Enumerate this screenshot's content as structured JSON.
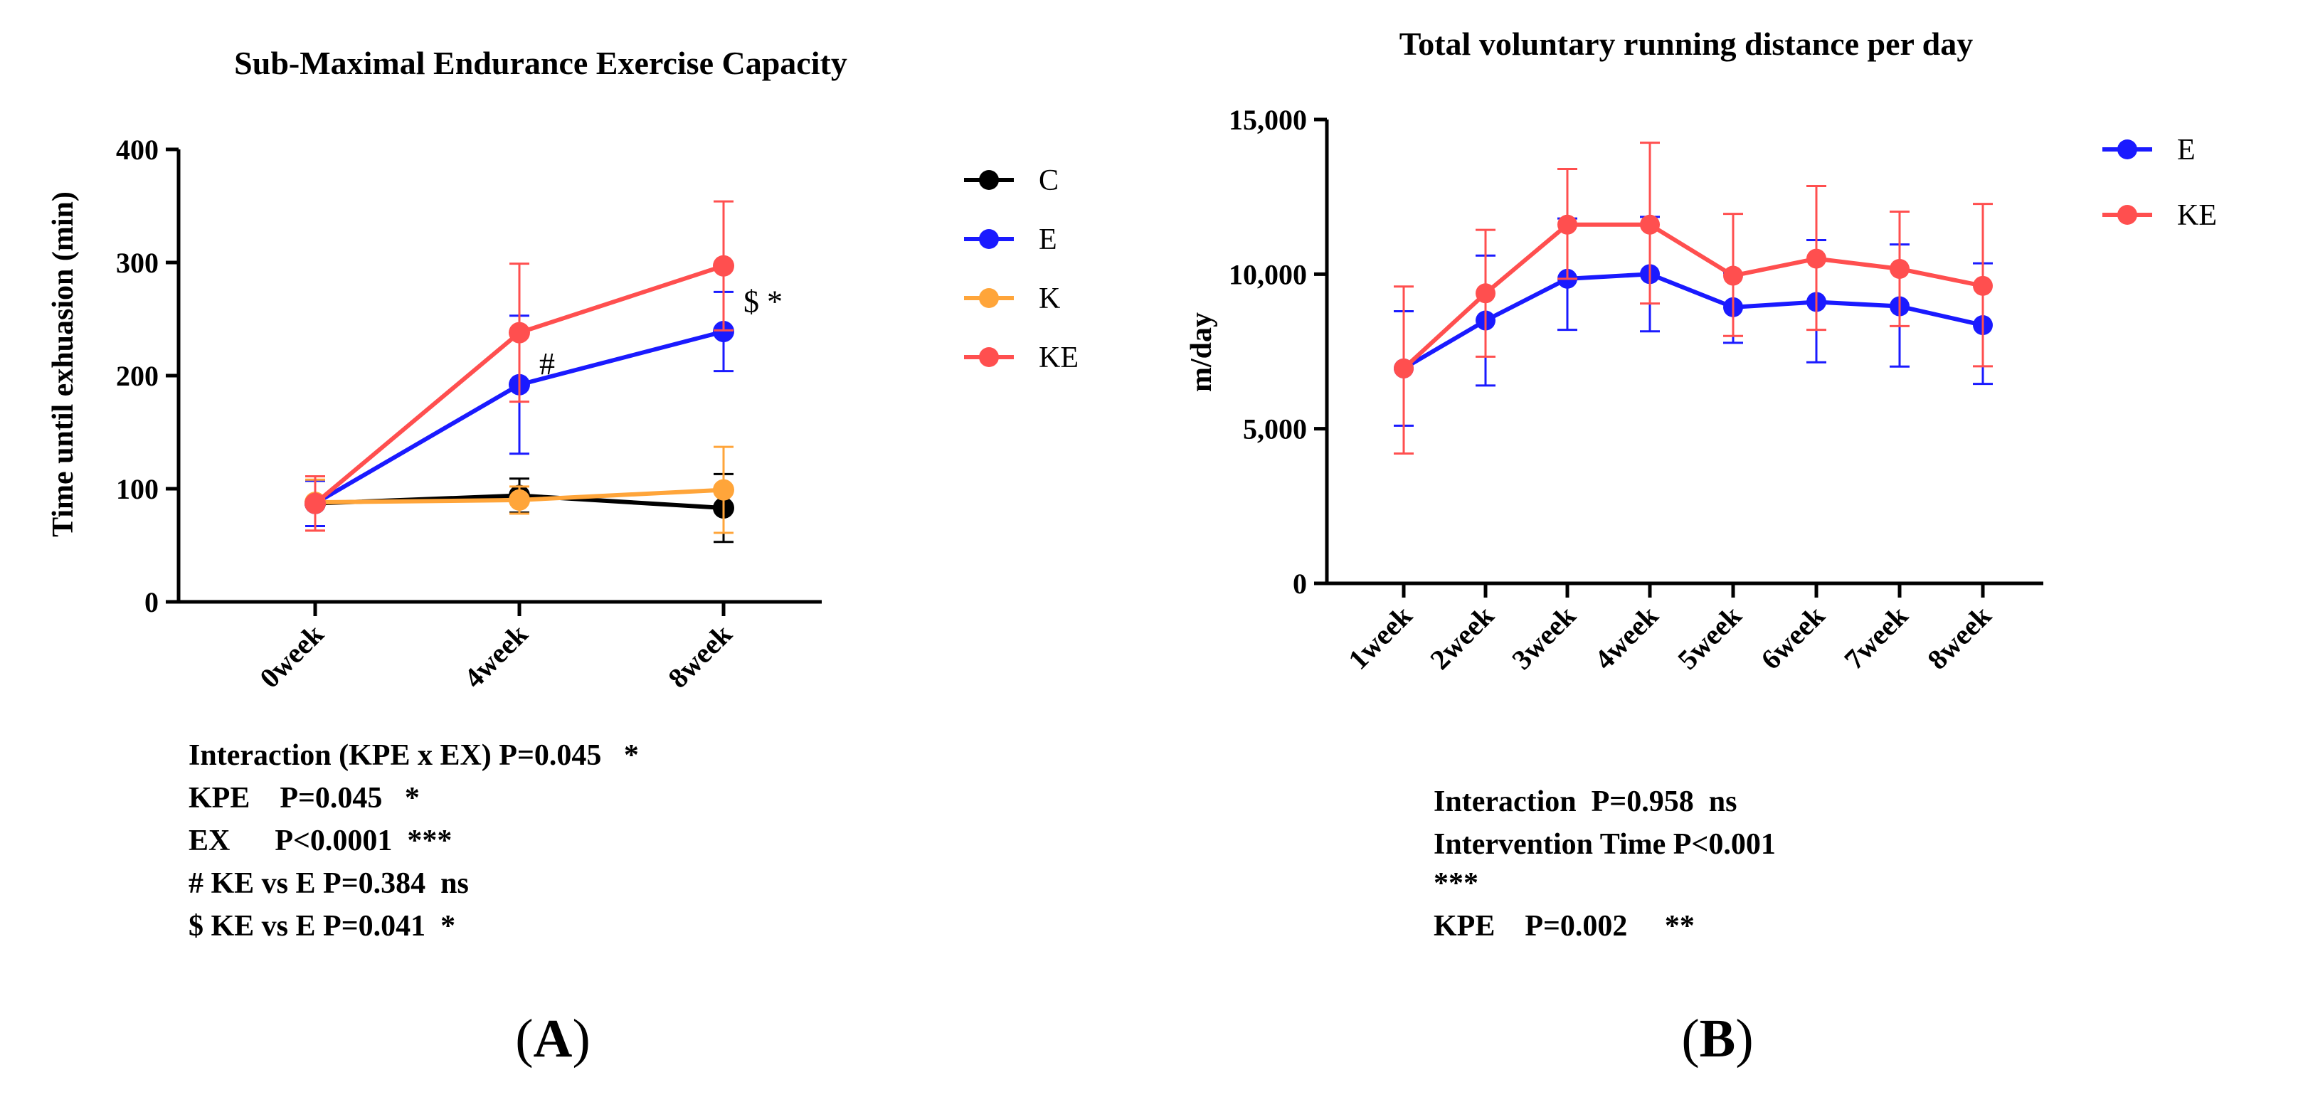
{
  "chart_data": [
    {
      "id": "A",
      "type": "line",
      "title": "Sub-Maximal Endurance Exercise Capacity",
      "ylabel": "Time until exhuasion (min)",
      "xlabel": "",
      "categories": [
        "0week",
        "4week",
        "8week"
      ],
      "ylim": [
        0,
        400
      ],
      "yticks": [
        0,
        100,
        200,
        300,
        400
      ],
      "ytick_labels": [
        "0",
        "100",
        "200",
        "300",
        "400"
      ],
      "legend_position": "right",
      "series": [
        {
          "name": "C",
          "color": "#000000",
          "values": [
            87,
            94,
            83
          ],
          "err_up": [
            20,
            15,
            30
          ],
          "err_down": [
            20,
            15,
            30
          ]
        },
        {
          "name": "E",
          "color": "#1a1aff",
          "values": [
            87,
            192,
            239
          ],
          "err_up": [
            20,
            61,
            35
          ],
          "err_down": [
            20,
            61,
            35
          ]
        },
        {
          "name": "K",
          "color": "#ffa53a",
          "values": [
            88,
            90,
            99
          ],
          "err_up": [
            20,
            12,
            38
          ],
          "err_down": [
            25,
            12,
            38
          ]
        },
        {
          "name": "KE",
          "color": "#ff4f4f",
          "values": [
            87,
            238,
            297
          ],
          "err_up": [
            24,
            61,
            57
          ],
          "err_down": [
            24,
            61,
            57
          ]
        }
      ],
      "annotations": [
        {
          "text": "#",
          "category": "4week",
          "value": 210
        },
        {
          "text": "$ *",
          "category": "8week",
          "value": 265
        }
      ],
      "stats": [
        "Interaction (KPE x EX) P=0.045   *",
        "KPE    P=0.045   *",
        "EX      P<0.0001  ***",
        "# KE vs E P=0.384  ns",
        "$ KE vs E P=0.041  *"
      ],
      "panel_label": "A"
    },
    {
      "id": "B",
      "type": "line",
      "title": "Total voluntary running distance per day",
      "ylabel": "m/day",
      "xlabel": "",
      "categories": [
        "1week",
        "2week",
        "3week",
        "4week",
        "5week",
        "6week",
        "7week",
        "8week"
      ],
      "ylim": [
        0,
        15000
      ],
      "yticks": [
        0,
        5000,
        10000,
        15000
      ],
      "ytick_labels": [
        "0",
        "5,000",
        "10,000",
        "15,000"
      ],
      "legend_position": "right",
      "series": [
        {
          "name": "E",
          "color": "#1a1aff",
          "values": [
            6950,
            8500,
            9850,
            10000,
            8930,
            9100,
            8960,
            8350
          ],
          "err_up": [
            1850,
            2100,
            1950,
            1850,
            1100,
            2000,
            2000,
            2000
          ],
          "err_down": [
            1850,
            2100,
            1650,
            1850,
            1150,
            1950,
            1950,
            1900
          ]
        },
        {
          "name": "KE",
          "color": "#ff4f4f",
          "values": [
            6950,
            9380,
            11600,
            11600,
            9950,
            10500,
            10170,
            9620
          ],
          "err_up": [
            2650,
            2050,
            1800,
            2650,
            2000,
            2350,
            1850,
            2650
          ],
          "err_down": [
            2750,
            2050,
            1750,
            2550,
            1950,
            2300,
            1850,
            2600
          ]
        }
      ],
      "stats": [
        "Interaction  P=0.958  ns",
        "Intervention Time P<0.001",
        "***",
        "KPE    P=0.002     **"
      ],
      "panel_label": "B"
    }
  ]
}
